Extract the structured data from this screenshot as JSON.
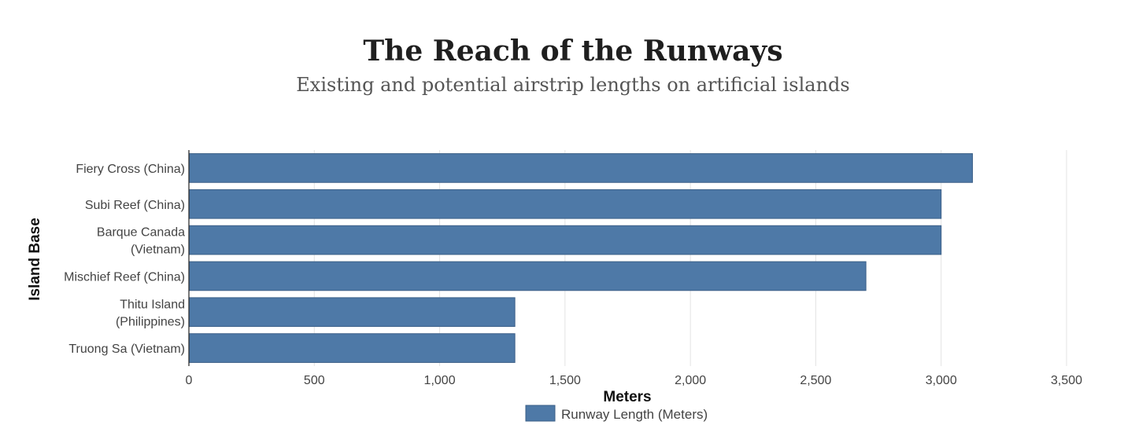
{
  "chart_data": {
    "type": "bar",
    "orientation": "horizontal",
    "title": "The Reach of the Runways",
    "subtitle": "Existing and potential airstrip lengths on artificial islands",
    "categories": [
      [
        "Fiery Cross (China)"
      ],
      [
        "Subi Reef (China)"
      ],
      [
        "Barque Canada",
        "(Vietnam)"
      ],
      [
        "Mischief Reef (China)"
      ],
      [
        "Thitu Island",
        "(Philippines)"
      ],
      [
        "Truong Sa (Vietnam)"
      ]
    ],
    "series": [
      {
        "name": "Runway Length (Meters)",
        "values": [
          3125,
          3000,
          3000,
          2700,
          1300,
          1300
        ]
      }
    ],
    "xlabel": "Meters",
    "ylabel": "Island Base",
    "xlim": [
      0,
      3500
    ],
    "xticks": [
      0,
      500,
      1000,
      1500,
      2000,
      2500,
      3000,
      3500
    ],
    "xtick_labels": [
      "0",
      "500",
      "1,000",
      "1,500",
      "2,000",
      "2,500",
      "3,000",
      "3,500"
    ],
    "grid": true,
    "legend_position": "bottom-center",
    "bar_color": "#4e79a7"
  }
}
